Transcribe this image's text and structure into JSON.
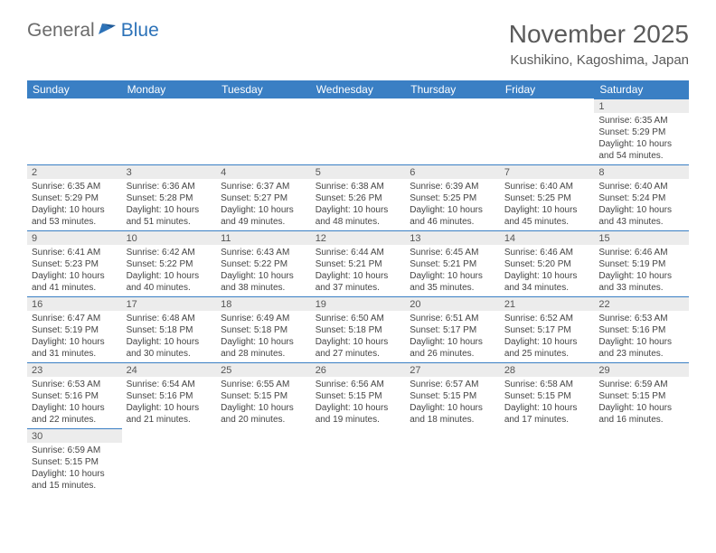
{
  "logo": {
    "text1": "General",
    "text2": "Blue"
  },
  "title": "November 2025",
  "location": "Kushikino, Kagoshima, Japan",
  "colors": {
    "header_bg": "#3a7fc4",
    "header_text": "#ffffff",
    "daynum_bg": "#ececec",
    "border": "#3a7fc4",
    "text": "#444444",
    "title_text": "#5a5a5a",
    "logo_gray": "#6b6b6b",
    "logo_blue": "#2c72b8"
  },
  "weekdays": [
    "Sunday",
    "Monday",
    "Tuesday",
    "Wednesday",
    "Thursday",
    "Friday",
    "Saturday"
  ],
  "weeks": [
    [
      null,
      null,
      null,
      null,
      null,
      null,
      {
        "d": "1",
        "sr": "6:35 AM",
        "ss": "5:29 PM",
        "dl": "10 hours and 54 minutes."
      }
    ],
    [
      {
        "d": "2",
        "sr": "6:35 AM",
        "ss": "5:29 PM",
        "dl": "10 hours and 53 minutes."
      },
      {
        "d": "3",
        "sr": "6:36 AM",
        "ss": "5:28 PM",
        "dl": "10 hours and 51 minutes."
      },
      {
        "d": "4",
        "sr": "6:37 AM",
        "ss": "5:27 PM",
        "dl": "10 hours and 49 minutes."
      },
      {
        "d": "5",
        "sr": "6:38 AM",
        "ss": "5:26 PM",
        "dl": "10 hours and 48 minutes."
      },
      {
        "d": "6",
        "sr": "6:39 AM",
        "ss": "5:25 PM",
        "dl": "10 hours and 46 minutes."
      },
      {
        "d": "7",
        "sr": "6:40 AM",
        "ss": "5:25 PM",
        "dl": "10 hours and 45 minutes."
      },
      {
        "d": "8",
        "sr": "6:40 AM",
        "ss": "5:24 PM",
        "dl": "10 hours and 43 minutes."
      }
    ],
    [
      {
        "d": "9",
        "sr": "6:41 AM",
        "ss": "5:23 PM",
        "dl": "10 hours and 41 minutes."
      },
      {
        "d": "10",
        "sr": "6:42 AM",
        "ss": "5:22 PM",
        "dl": "10 hours and 40 minutes."
      },
      {
        "d": "11",
        "sr": "6:43 AM",
        "ss": "5:22 PM",
        "dl": "10 hours and 38 minutes."
      },
      {
        "d": "12",
        "sr": "6:44 AM",
        "ss": "5:21 PM",
        "dl": "10 hours and 37 minutes."
      },
      {
        "d": "13",
        "sr": "6:45 AM",
        "ss": "5:21 PM",
        "dl": "10 hours and 35 minutes."
      },
      {
        "d": "14",
        "sr": "6:46 AM",
        "ss": "5:20 PM",
        "dl": "10 hours and 34 minutes."
      },
      {
        "d": "15",
        "sr": "6:46 AM",
        "ss": "5:19 PM",
        "dl": "10 hours and 33 minutes."
      }
    ],
    [
      {
        "d": "16",
        "sr": "6:47 AM",
        "ss": "5:19 PM",
        "dl": "10 hours and 31 minutes."
      },
      {
        "d": "17",
        "sr": "6:48 AM",
        "ss": "5:18 PM",
        "dl": "10 hours and 30 minutes."
      },
      {
        "d": "18",
        "sr": "6:49 AM",
        "ss": "5:18 PM",
        "dl": "10 hours and 28 minutes."
      },
      {
        "d": "19",
        "sr": "6:50 AM",
        "ss": "5:18 PM",
        "dl": "10 hours and 27 minutes."
      },
      {
        "d": "20",
        "sr": "6:51 AM",
        "ss": "5:17 PM",
        "dl": "10 hours and 26 minutes."
      },
      {
        "d": "21",
        "sr": "6:52 AM",
        "ss": "5:17 PM",
        "dl": "10 hours and 25 minutes."
      },
      {
        "d": "22",
        "sr": "6:53 AM",
        "ss": "5:16 PM",
        "dl": "10 hours and 23 minutes."
      }
    ],
    [
      {
        "d": "23",
        "sr": "6:53 AM",
        "ss": "5:16 PM",
        "dl": "10 hours and 22 minutes."
      },
      {
        "d": "24",
        "sr": "6:54 AM",
        "ss": "5:16 PM",
        "dl": "10 hours and 21 minutes."
      },
      {
        "d": "25",
        "sr": "6:55 AM",
        "ss": "5:15 PM",
        "dl": "10 hours and 20 minutes."
      },
      {
        "d": "26",
        "sr": "6:56 AM",
        "ss": "5:15 PM",
        "dl": "10 hours and 19 minutes."
      },
      {
        "d": "27",
        "sr": "6:57 AM",
        "ss": "5:15 PM",
        "dl": "10 hours and 18 minutes."
      },
      {
        "d": "28",
        "sr": "6:58 AM",
        "ss": "5:15 PM",
        "dl": "10 hours and 17 minutes."
      },
      {
        "d": "29",
        "sr": "6:59 AM",
        "ss": "5:15 PM",
        "dl": "10 hours and 16 minutes."
      }
    ],
    [
      {
        "d": "30",
        "sr": "6:59 AM",
        "ss": "5:15 PM",
        "dl": "10 hours and 15 minutes."
      },
      null,
      null,
      null,
      null,
      null,
      null
    ]
  ],
  "labels": {
    "sunrise": "Sunrise:",
    "sunset": "Sunset:",
    "daylight": "Daylight:"
  }
}
